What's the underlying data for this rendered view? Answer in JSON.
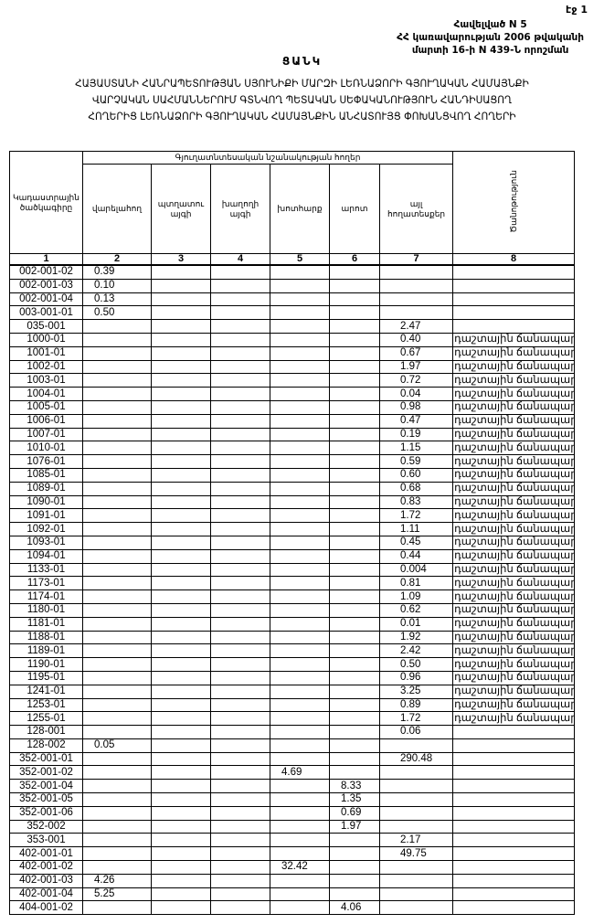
{
  "page_number": "էջ 1",
  "annex": {
    "line1": "Հավելված N 5",
    "line2": "ՀՀ կառավարության 2006 թվականի",
    "line3": "մարտի 16-ի N 439-Ն որոշման"
  },
  "title": "ՑԱՆԿ",
  "subtitle": {
    "line1": "ՀԱՅԱՍՏԱՆԻ ՀԱՆՐԱՊԵՏՈՒԹՅԱՆ ՍՅՈՒՆԻՔԻ ՄԱՐԶԻ ԼԵՌՆԱՁՈՐԻ ԳՅՈՒՂԱԿԱՆ ՀԱՄԱՅՆՔԻ",
    "line2": "ՎԱՐՉԱԿԱՆ ՍԱՀՄԱՆՆԵՐՈՒՄ ԳՏՆՎՈՂ ՊԵՏԱԿԱՆ ՍԵՓԱԿԱՆՈՒԹՅՈՒՆ ՀԱՆԴԻՍԱՑՈՂ",
    "line3": "ՀՈՂԵՐԻՑ ԼԵՌՆԱՁՈՐԻ ԳՅՈՒՂԱԿԱՆ ՀԱՄԱՅՆՔԻՆ ԱՆՀԱՏՈՒՅՑ ՓՈԽԱՆՑՎՈՂ ՀՈՂԵՐԻ"
  },
  "table": {
    "group_header": "Գյուղատնտեսական նշանակության հողեր",
    "headers": [
      "Կադաստրային ծածկագիրը",
      "վարելահող",
      "պտղատու այգի",
      "խաղողի այգի",
      "խոտհարք",
      "արոտ",
      "այլ հողատեսքեր",
      "Ծանոթություն"
    ],
    "column_numbers": [
      "1",
      "2",
      "3",
      "4",
      "5",
      "6",
      "7",
      "8"
    ],
    "rows": [
      [
        "002-001-02",
        "0.39",
        "",
        "",
        "",
        "",
        "",
        ""
      ],
      [
        "002-001-03",
        "0.10",
        "",
        "",
        "",
        "",
        "",
        ""
      ],
      [
        "002-001-04",
        "0.13",
        "",
        "",
        "",
        "",
        "",
        ""
      ],
      [
        "003-001-01",
        "0.50",
        "",
        "",
        "",
        "",
        "",
        ""
      ],
      [
        "035-001",
        "",
        "",
        "",
        "",
        "",
        "2.47",
        ""
      ],
      [
        "1000-01",
        "",
        "",
        "",
        "",
        "",
        "0.40",
        "դաշտային ճանապարհ"
      ],
      [
        "1001-01",
        "",
        "",
        "",
        "",
        "",
        "0.67",
        "դաշտային ճանապարհ"
      ],
      [
        "1002-01",
        "",
        "",
        "",
        "",
        "",
        "1.97",
        "դաշտային ճանապարհ"
      ],
      [
        "1003-01",
        "",
        "",
        "",
        "",
        "",
        "0.72",
        "դաշտային ճանապարհ"
      ],
      [
        "1004-01",
        "",
        "",
        "",
        "",
        "",
        "0.04",
        "դաշտային ճանապարհ"
      ],
      [
        "1005-01",
        "",
        "",
        "",
        "",
        "",
        "0.98",
        "դաշտային ճանապարհ"
      ],
      [
        "1006-01",
        "",
        "",
        "",
        "",
        "",
        "0.47",
        "դաշտային ճանապարհ"
      ],
      [
        "1007-01",
        "",
        "",
        "",
        "",
        "",
        "0.19",
        "դաշտային ճանապարհ"
      ],
      [
        "1010-01",
        "",
        "",
        "",
        "",
        "",
        "1.15",
        "դաշտային ճանապարհ"
      ],
      [
        "1076-01",
        "",
        "",
        "",
        "",
        "",
        "0.59",
        "դաշտային ճանապարհ"
      ],
      [
        "1085-01",
        "",
        "",
        "",
        "",
        "",
        "0.60",
        "դաշտային ճանապարհ"
      ],
      [
        "1089-01",
        "",
        "",
        "",
        "",
        "",
        "0.68",
        "դաշտային ճանապարհ"
      ],
      [
        "1090-01",
        "",
        "",
        "",
        "",
        "",
        "0.83",
        "դաշտային ճանապարհ"
      ],
      [
        "1091-01",
        "",
        "",
        "",
        "",
        "",
        "1.72",
        "դաշտային ճանապարհ"
      ],
      [
        "1092-01",
        "",
        "",
        "",
        "",
        "",
        "1.11",
        "դաշտային ճանապարհ"
      ],
      [
        "1093-01",
        "",
        "",
        "",
        "",
        "",
        "0.45",
        "դաշտային ճանապարհ"
      ],
      [
        "1094-01",
        "",
        "",
        "",
        "",
        "",
        "0.44",
        "դաշտային ճանապարհ"
      ],
      [
        "1133-01",
        "",
        "",
        "",
        "",
        "",
        "0.004",
        "դաշտային ճանապարհ"
      ],
      [
        "1173-01",
        "",
        "",
        "",
        "",
        "",
        "0.81",
        "դաշտային ճանապարհ"
      ],
      [
        "1174-01",
        "",
        "",
        "",
        "",
        "",
        "1.09",
        "դաշտային ճանապարհ"
      ],
      [
        "1180-01",
        "",
        "",
        "",
        "",
        "",
        "0.62",
        "դաշտային ճանապարհ"
      ],
      [
        "1181-01",
        "",
        "",
        "",
        "",
        "",
        "0.01",
        "դաշտային ճանապարհ"
      ],
      [
        "1188-01",
        "",
        "",
        "",
        "",
        "",
        "1.92",
        "դաշտային ճանապարհ"
      ],
      [
        "1189-01",
        "",
        "",
        "",
        "",
        "",
        "2.42",
        "դաշտային ճանապարհ"
      ],
      [
        "1190-01",
        "",
        "",
        "",
        "",
        "",
        "0.50",
        "դաշտային ճանապարհ"
      ],
      [
        "1195-01",
        "",
        "",
        "",
        "",
        "",
        "0.96",
        "դաշտային ճանապարհ"
      ],
      [
        "1241-01",
        "",
        "",
        "",
        "",
        "",
        "3.25",
        "դաշտային ճանապարհ"
      ],
      [
        "1253-01",
        "",
        "",
        "",
        "",
        "",
        "0.89",
        "դաշտային ճանապարհ"
      ],
      [
        "1255-01",
        "",
        "",
        "",
        "",
        "",
        "1.72",
        "դաշտային ճանապարհ"
      ],
      [
        "128-001",
        "",
        "",
        "",
        "",
        "",
        "0.06",
        ""
      ],
      [
        "128-002",
        "0.05",
        "",
        "",
        "",
        "",
        "",
        ""
      ],
      [
        "352-001-01",
        "",
        "",
        "",
        "",
        "",
        "290.48",
        ""
      ],
      [
        "352-001-02",
        "",
        "",
        "",
        "4.69",
        "",
        "",
        ""
      ],
      [
        "352-001-04",
        "",
        "",
        "",
        "",
        "8.33",
        "",
        ""
      ],
      [
        "352-001-05",
        "",
        "",
        "",
        "",
        "1.35",
        "",
        ""
      ],
      [
        "352-001-06",
        "",
        "",
        "",
        "",
        "0.69",
        "",
        ""
      ],
      [
        "352-002",
        "",
        "",
        "",
        "",
        "1.97",
        "",
        ""
      ],
      [
        "353-001",
        "",
        "",
        "",
        "",
        "",
        "2.17",
        ""
      ],
      [
        "402-001-01",
        "",
        "",
        "",
        "",
        "",
        "49.75",
        ""
      ],
      [
        "402-001-02",
        "",
        "",
        "",
        "32.42",
        "",
        "",
        ""
      ],
      [
        "402-001-03",
        "4.26",
        "",
        "",
        "",
        "",
        "",
        ""
      ],
      [
        "402-001-04",
        "5.25",
        "",
        "",
        "",
        "",
        "",
        ""
      ],
      [
        "404-001-02",
        "",
        "",
        "",
        "",
        "4.06",
        "",
        ""
      ]
    ]
  }
}
